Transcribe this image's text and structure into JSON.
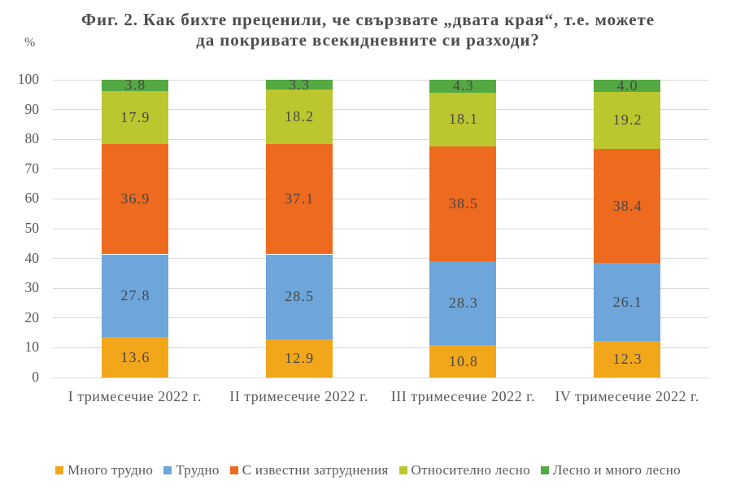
{
  "title": {
    "line1": "Фиг. 2. Как бихте преценили, че свързвате „двата края“, т.е. можете",
    "line2": "да покривате всекидневните си разходи?"
  },
  "percent_label": "%",
  "chart_data": {
    "type": "bar",
    "stacked": true,
    "percent_stacked": true,
    "title": "Фиг. 2. Как бихте преценили, че свързвате „двата края“, т.е. можете да покривате всекидневните си разходи?",
    "ylabel": "%",
    "ylim": [
      0,
      100
    ],
    "yticks": [
      0,
      10,
      20,
      30,
      40,
      50,
      60,
      70,
      80,
      90,
      100
    ],
    "grid": true,
    "legend_position": "bottom",
    "categories": [
      "I тримесечие 2022 г.",
      "II тримесечие 2022 г.",
      "III тримесечие 2022 г.",
      "IV тримесечие 2022 г."
    ],
    "series": [
      {
        "name": "Много трудно",
        "color": "#F2A71B",
        "values": [
          13.6,
          12.9,
          10.8,
          12.3
        ]
      },
      {
        "name": "Трудно",
        "color": "#6EA6DB",
        "values": [
          27.8,
          28.5,
          28.3,
          26.1
        ]
      },
      {
        "name": "С известни затруднения",
        "color": "#ED6A1E",
        "values": [
          36.9,
          37.1,
          38.5,
          38.4
        ]
      },
      {
        "name": "Относително лесно",
        "color": "#BCC62E",
        "values": [
          17.9,
          18.2,
          18.1,
          19.2
        ]
      },
      {
        "name": "Лесно и много лесно",
        "color": "#54A942",
        "values": [
          3.8,
          3.3,
          4.3,
          4.0
        ]
      }
    ]
  }
}
